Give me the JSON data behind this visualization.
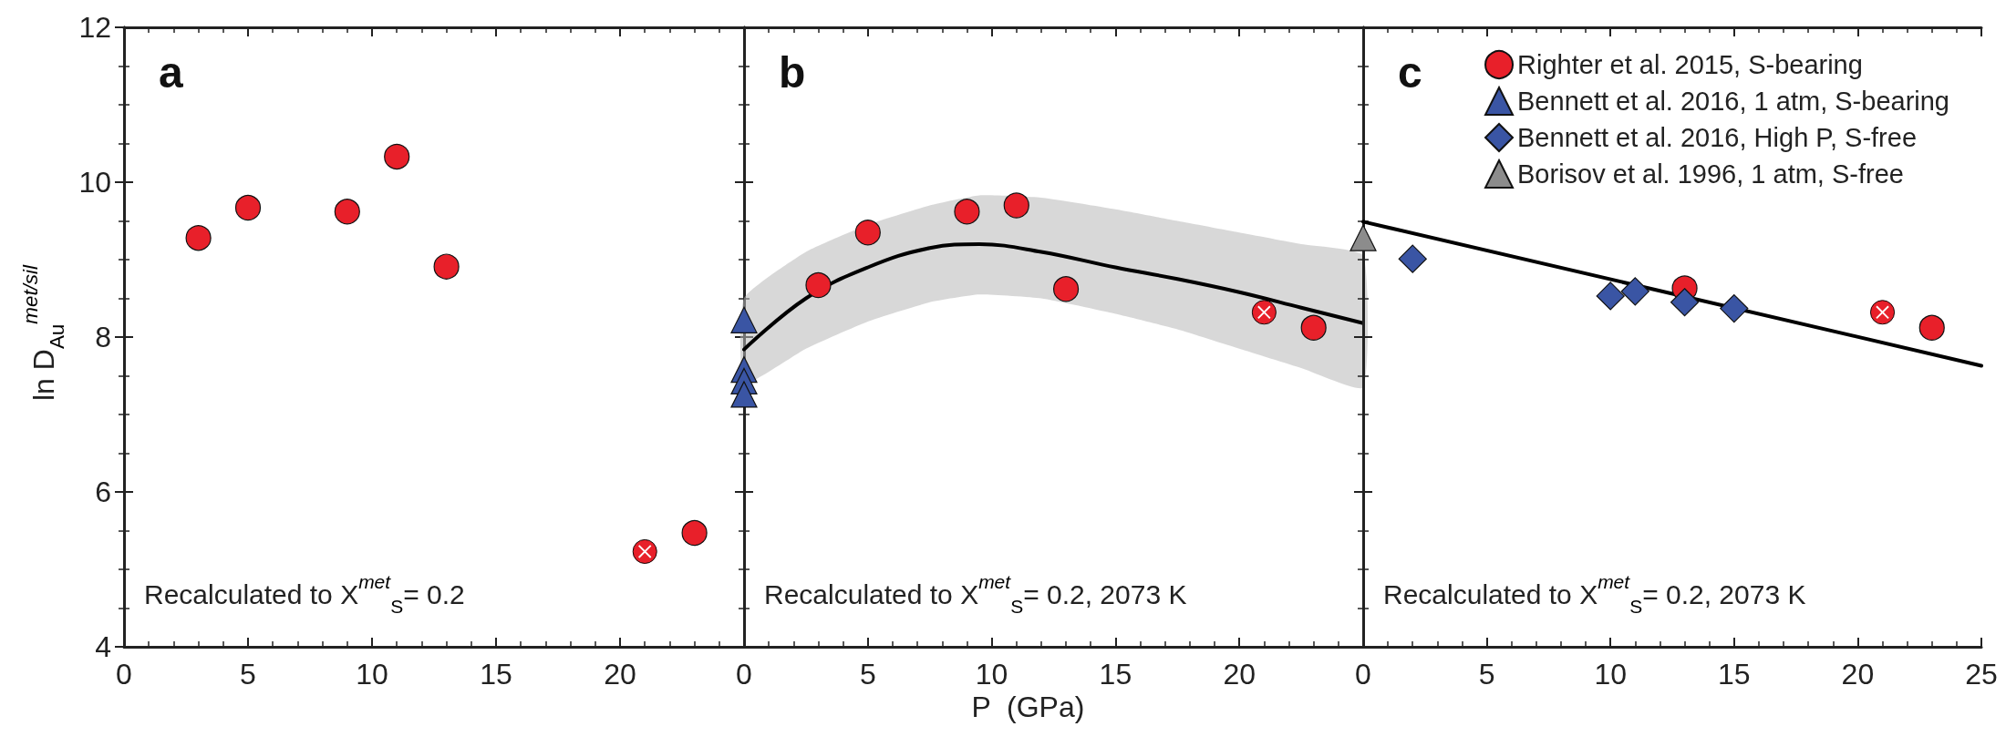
{
  "chart_data": [
    {
      "type": "scatter",
      "annotations": [
        "a",
        "Recalculated to X$^{met}$$_{S}$= 0.2"
      ],
      "ylabel": "ln D$_{Au}$$^{met/sil}$",
      "xlim": [
        0,
        25
      ],
      "xticks": [
        0,
        5,
        10,
        15,
        20,
        {
          "value": 25,
          "label": null
        }
      ],
      "ylim": [
        4,
        12
      ],
      "yticks": [
        4,
        6,
        8,
        10,
        12
      ],
      "grid": false,
      "series": [
        {
          "color": "#e8202a",
          "marker": "circle",
          "x": [
            3,
            5,
            9,
            11,
            13,
            23
          ],
          "values": [
            9.28,
            9.67,
            9.62,
            10.33,
            8.91,
            5.47
          ]
        },
        {
          "color": "#e8202a",
          "x": [
            21
          ],
          "values": [
            5.23
          ]
        }
      ]
    },
    {
      "type": "scatter",
      "annotations": [
        "b",
        "Recalculated to X$^{met}$$_{S}$= 0.2, 2073 K"
      ],
      "xlabel": "P  (GPa)",
      "xlim": [
        0,
        25
      ],
      "xticks": [
        0,
        5,
        10,
        15,
        20,
        {
          "value": 25,
          "label": null
        }
      ],
      "ylim": [
        4,
        12
      ],
      "yticks": [
        4,
        6,
        8,
        10,
        12
      ],
      "tick_labels": "x",
      "grid": false,
      "series": [
        {
          "type": "line",
          "color": "#000000",
          "marker": "none",
          "x": [
            0,
            2.5,
            5,
            7.5,
            9.5,
            12,
            15,
            17.5,
            20,
            22.5,
            25
          ],
          "values": [
            7.84,
            8.5,
            8.9,
            9.15,
            9.2,
            9.1,
            8.9,
            8.75,
            8.58,
            8.38,
            8.18
          ],
          "lower": [
            7.4,
            7.85,
            8.2,
            8.45,
            8.55,
            8.5,
            8.3,
            8.1,
            7.85,
            7.6,
            7.35
          ],
          "upper": [
            8.5,
            9.1,
            9.45,
            9.7,
            9.83,
            9.8,
            9.65,
            9.5,
            9.35,
            9.2,
            9.05
          ]
        },
        {
          "color": "#e8202a",
          "marker": "circle",
          "x": [
            3,
            5,
            9,
            11,
            13,
            23
          ],
          "values": [
            8.67,
            9.35,
            9.62,
            9.7,
            8.62,
            8.12
          ]
        },
        {
          "color": "#e8202a",
          "x": [
            21
          ],
          "values": [
            8.32
          ]
        },
        {
          "color": "#3a55a4",
          "marker": "triangle",
          "x": [
            0,
            0,
            0,
            0
          ],
          "values": [
            8.22,
            7.58,
            7.43,
            7.26
          ]
        }
      ]
    },
    {
      "type": "scatter",
      "annotations": [
        "c",
        "Recalculated to X$^{met}$$_{S}$= 0.2, 2073 K"
      ],
      "xlim": [
        0,
        25
      ],
      "xticks": [
        0,
        5,
        10,
        15,
        20,
        25
      ],
      "ylim": [
        4,
        12
      ],
      "yticks": [
        4,
        6,
        8,
        10,
        12
      ],
      "tick_labels": "x",
      "grid": false,
      "legend": "top right",
      "series": [
        {
          "type": "line",
          "color": "#000000",
          "marker": "none",
          "x": [
            0,
            25
          ],
          "values": [
            9.49,
            7.63
          ]
        },
        {
          "name": "Righter et al. 2015, S-bearing",
          "color": "#e8202a",
          "marker": "circle",
          "x": [
            13,
            23
          ],
          "values": [
            8.63,
            8.12
          ]
        },
        {
          "color": "#e8202a",
          "x": [
            21
          ],
          "values": [
            8.32
          ]
        },
        {
          "name": "Bennett et al. 2016, 1 atm, S-bearing",
          "color": "#3a55a4",
          "marker": "triangle"
        },
        {
          "name": "Bennett et al. 2016, High P, S-free",
          "color": "#3a55a4",
          "marker": "diamond",
          "x": [
            2,
            10,
            11,
            13,
            15
          ],
          "values": [
            9.01,
            8.53,
            8.59,
            8.45,
            8.37
          ]
        },
        {
          "name": "Borisov et al. 1996, 1 atm, S-free",
          "color": "#8c8c8c",
          "marker": "triangle",
          "x": [
            0
          ],
          "values": [
            9.28
          ]
        }
      ]
    }
  ]
}
